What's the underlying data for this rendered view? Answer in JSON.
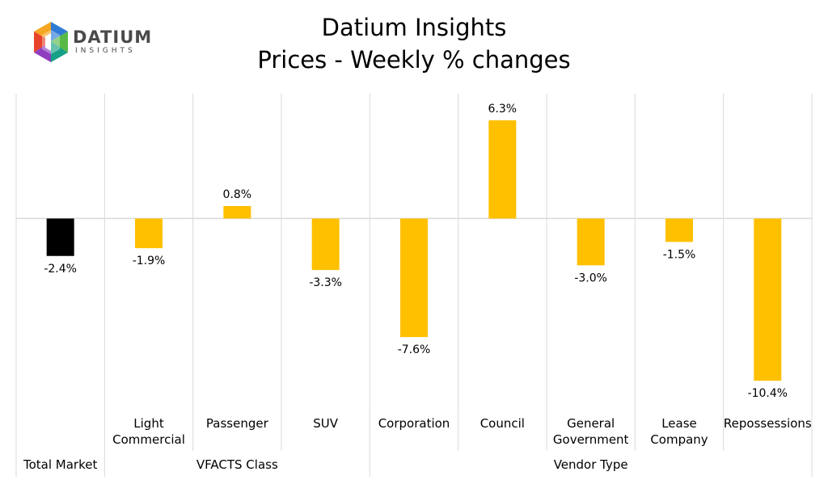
{
  "logo": {
    "word": "DATIUM",
    "sub": "INSIGHTS"
  },
  "chart_data": {
    "type": "bar",
    "title": "Datium Insights",
    "subtitle": "Prices - Weekly % changes",
    "categories": [
      [
        "Total Market"
      ],
      [
        "Light",
        "Commercial"
      ],
      [
        "Passenger"
      ],
      [
        "SUV"
      ],
      [
        "Corporation"
      ],
      [
        "Council"
      ],
      [
        "General",
        "Government"
      ],
      [
        "Lease",
        "Company"
      ],
      [
        "Repossessions"
      ]
    ],
    "values": [
      -2.4,
      -1.9,
      0.8,
      -3.3,
      -7.6,
      6.3,
      -3.0,
      -1.5,
      -10.4
    ],
    "value_labels": [
      "-2.4%",
      "-1.9%",
      "0.8%",
      "-3.3%",
      "-7.6%",
      "6.3%",
      "-3.0%",
      "-1.5%",
      "-10.4%"
    ],
    "groups": [
      {
        "label": "Total Market",
        "start": 0,
        "end": 0
      },
      {
        "label": "VFACTS Class",
        "start": 1,
        "end": 3
      },
      {
        "label": "Vendor Type",
        "start": 4,
        "end": 8
      }
    ],
    "ylim": [
      -12.1,
      8.0
    ],
    "colors": {
      "first": "#000000",
      "rest": "#FFC000",
      "grid": "#d9d9d9"
    }
  }
}
